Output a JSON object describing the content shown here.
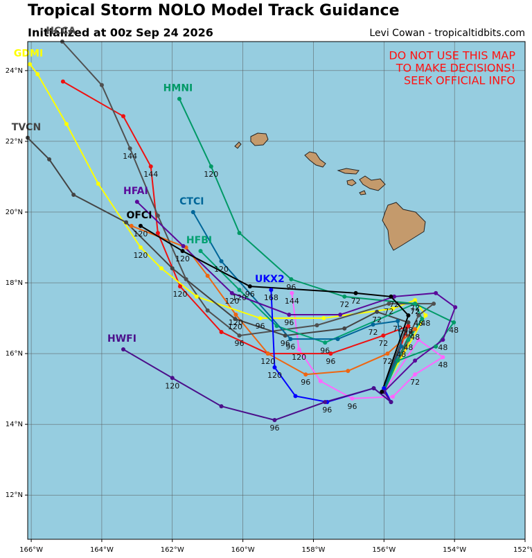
{
  "chart_data": {
    "type": "track",
    "title": "Tropical Storm NOLO Model Track Guidance",
    "subtitle": "Initialized at 00z Sep 24 2026",
    "credit": "Levi Cowan - tropicaltidbits.com",
    "warning": [
      "DO NOT USE THIS MAP",
      "TO MAKE DECISIONS!",
      "SEEK OFFICIAL INFO"
    ],
    "xlim": [
      -166.1,
      -152
    ],
    "ylim": [
      10.75,
      24.82
    ],
    "xticks": [
      {
        "value": -166,
        "label": "166°W"
      },
      {
        "value": -164,
        "label": "164°W"
      },
      {
        "value": -162,
        "label": "162°W"
      },
      {
        "value": -160,
        "label": "160°W"
      },
      {
        "value": -158,
        "label": "158°W"
      },
      {
        "value": -156,
        "label": "156°W"
      },
      {
        "value": -154,
        "label": "154°W"
      },
      {
        "value": -152,
        "label": "152°W"
      }
    ],
    "yticks": [
      {
        "value": 12,
        "label": "12°N"
      },
      {
        "value": 14,
        "label": "14°N"
      },
      {
        "value": 16,
        "label": "16°N"
      },
      {
        "value": 18,
        "label": "18°N"
      },
      {
        "value": 20,
        "label": "20°N"
      },
      {
        "value": 22,
        "label": "22°N"
      },
      {
        "value": 24,
        "label": "24°N"
      }
    ],
    "grid": true,
    "series": [
      {
        "color": "#ff66ff",
        "lon": [
          -156.0,
          -155.02,
          -154.33,
          -155.12,
          -155.75,
          -156.9,
          -157.8,
          -158.41,
          -158.61
        ],
        "lat": [
          14.92,
          16.39,
          15.9,
          15.41,
          14.78,
          14.73,
          15.22,
          16.12,
          17.71
        ],
        "labels": [
          null,
          null,
          48,
          72,
          null,
          96,
          null,
          120,
          144
        ]
      },
      {
        "color": "#ee1111",
        "lon": [
          -156.0,
          -155.31,
          -156.02,
          -157.51,
          -159.29,
          -160.61,
          -161.78,
          -162.41,
          -162.61,
          -163.39,
          -165.1
        ],
        "lat": [
          14.92,
          16.78,
          16.51,
          16.0,
          16.0,
          16.61,
          17.9,
          19.41,
          21.29,
          22.71,
          23.69
        ],
        "labels": [
          null,
          48,
          72,
          96,
          120,
          null,
          120,
          null,
          144,
          null,
          null
        ]
      },
      {
        "color": "#ee6611",
        "lon": [
          -156.0,
          -155.12,
          -155.9,
          -157.02,
          -158.22,
          -159.29,
          -160.2,
          -161.0,
          -161.61,
          -163.16
        ],
        "lat": [
          15.02,
          16.69,
          16.0,
          15.51,
          15.41,
          16.0,
          17.1,
          18.2,
          19.0,
          19.61
        ],
        "labels": [
          null,
          48,
          72,
          null,
          96,
          null,
          120,
          null,
          null,
          null
        ]
      },
      {
        "name": "GDMI",
        "color": "#ffff00",
        "lon": [
          -156.0,
          -154.82,
          -155.12,
          -155.75,
          -157.71,
          -159.51,
          -161.31,
          -162.31,
          -162.9,
          -164.1,
          -165.0,
          -165.82,
          -166.04
        ],
        "lat": [
          15.02,
          17.08,
          17.51,
          17.27,
          17.0,
          17.0,
          17.61,
          18.41,
          19.0,
          20.8,
          22.49,
          23.9,
          24.18
        ],
        "labels": [
          null,
          48,
          72,
          null,
          null,
          96,
          null,
          null,
          120,
          null,
          null,
          null,
          null
        ]
      },
      {
        "name": "HCCA",
        "color": "#505050",
        "lon": [
          -156.0,
          -155.02,
          -154.59,
          -155.86,
          -157.9,
          -160.1,
          -161.0,
          -161.61,
          -162.41,
          -163.2,
          -164.0,
          -165.12
        ],
        "lat": [
          15.02,
          17.08,
          17.41,
          17.41,
          16.8,
          16.51,
          17.22,
          18.1,
          19.9,
          21.8,
          23.59,
          24.82
        ],
        "labels": [
          null,
          48,
          null,
          72,
          null,
          96,
          null,
          null,
          null,
          144,
          null,
          null
        ]
      },
      {
        "name": "TVCN",
        "color": "#444444",
        "lon": [
          -156.0,
          -155.31,
          -156.2,
          -157.12,
          -158.8,
          -160.22,
          -162.0,
          -163.31,
          -164.8,
          -165.49,
          -166.1
        ],
        "lat": [
          15.02,
          16.88,
          17.18,
          16.71,
          16.51,
          16.98,
          18.41,
          19.71,
          20.49,
          21.49,
          22.1
        ],
        "labels": [
          null,
          48,
          72,
          null,
          96,
          120,
          null,
          null,
          null,
          null,
          null
        ]
      },
      {
        "name": "HMNI",
        "color": "#009966",
        "lon": [
          -156.0,
          -155.61,
          -154.53,
          -154.02,
          -155.12,
          -157.12,
          -158.63,
          -160.1,
          -160.9,
          -161.8
        ],
        "lat": [
          14.92,
          15.8,
          16.2,
          16.88,
          17.41,
          17.61,
          18.1,
          19.41,
          21.29,
          23.2
        ],
        "labels": [
          null,
          null,
          null,
          48,
          72,
          72,
          96,
          null,
          120,
          null
        ]
      },
      {
        "name": "HFBI",
        "color": "#00a070",
        "lon": [
          -156.0,
          -155.31,
          -154.92,
          -155.12,
          -157.67,
          -159.04,
          -160.1,
          -161.2
        ],
        "lat": [
          15.02,
          16.39,
          16.98,
          17.41,
          16.31,
          16.78,
          17.8,
          18.9
        ],
        "labels": [
          null,
          48,
          null,
          72,
          96,
          null,
          120,
          null
        ]
      },
      {
        "name": "CTCI",
        "color": "#006699",
        "lon": [
          -156.0,
          -155.51,
          -155.61,
          -156.31,
          -157.31,
          -158.65,
          -160.61,
          -161.41
        ],
        "lat": [
          15.02,
          16.2,
          16.92,
          16.82,
          16.41,
          16.41,
          18.61,
          20.0
        ],
        "labels": [
          null,
          48,
          72,
          72,
          null,
          96,
          120,
          null
        ]
      },
      {
        "name": "UKX2",
        "color": "#0000ff",
        "lon": [
          -156.0,
          -155.8,
          -156.29,
          -157.61,
          -158.51,
          -159.1,
          -159.2
        ],
        "lat": [
          15.02,
          14.63,
          15.02,
          14.63,
          14.8,
          15.61,
          17.8
        ],
        "labels": [
          null,
          null,
          null,
          96,
          null,
          120,
          168
        ]
      },
      {
        "name": "HFAI",
        "color": "#5a0a9a",
        "lon": [
          -156.0,
          -155.12,
          -154.33,
          -153.98,
          -154.53,
          -155.71,
          -157.24,
          -158.69,
          -160.31,
          -161.69,
          -163.0
        ],
        "lat": [
          14.92,
          15.8,
          16.39,
          17.31,
          17.71,
          17.61,
          17.1,
          17.1,
          17.71,
          19.04,
          20.29
        ],
        "labels": [
          null,
          null,
          48,
          null,
          null,
          72,
          null,
          96,
          120,
          null,
          null
        ]
      },
      {
        "name": "HWFI",
        "color": "#4b0f8a",
        "lon": [
          -156.0,
          -155.8,
          -156.29,
          -157.67,
          -159.1,
          -160.61,
          -162.0,
          -163.39
        ],
        "lat": [
          14.92,
          14.63,
          15.02,
          14.63,
          14.12,
          14.51,
          15.31,
          16.12
        ],
        "labels": [
          null,
          null,
          null,
          null,
          96,
          null,
          120,
          null
        ]
      },
      {
        "name": "OFCI",
        "color": "#000000",
        "lon": [
          -156.06,
          -155.31,
          -155.8,
          -156.8,
          -159.8,
          -161.71,
          -162.9
        ],
        "lat": [
          14.92,
          17.08,
          17.61,
          17.71,
          17.9,
          18.9,
          19.61
        ],
        "labels": [
          null,
          null,
          null,
          72,
          96,
          120,
          120
        ]
      }
    ]
  }
}
